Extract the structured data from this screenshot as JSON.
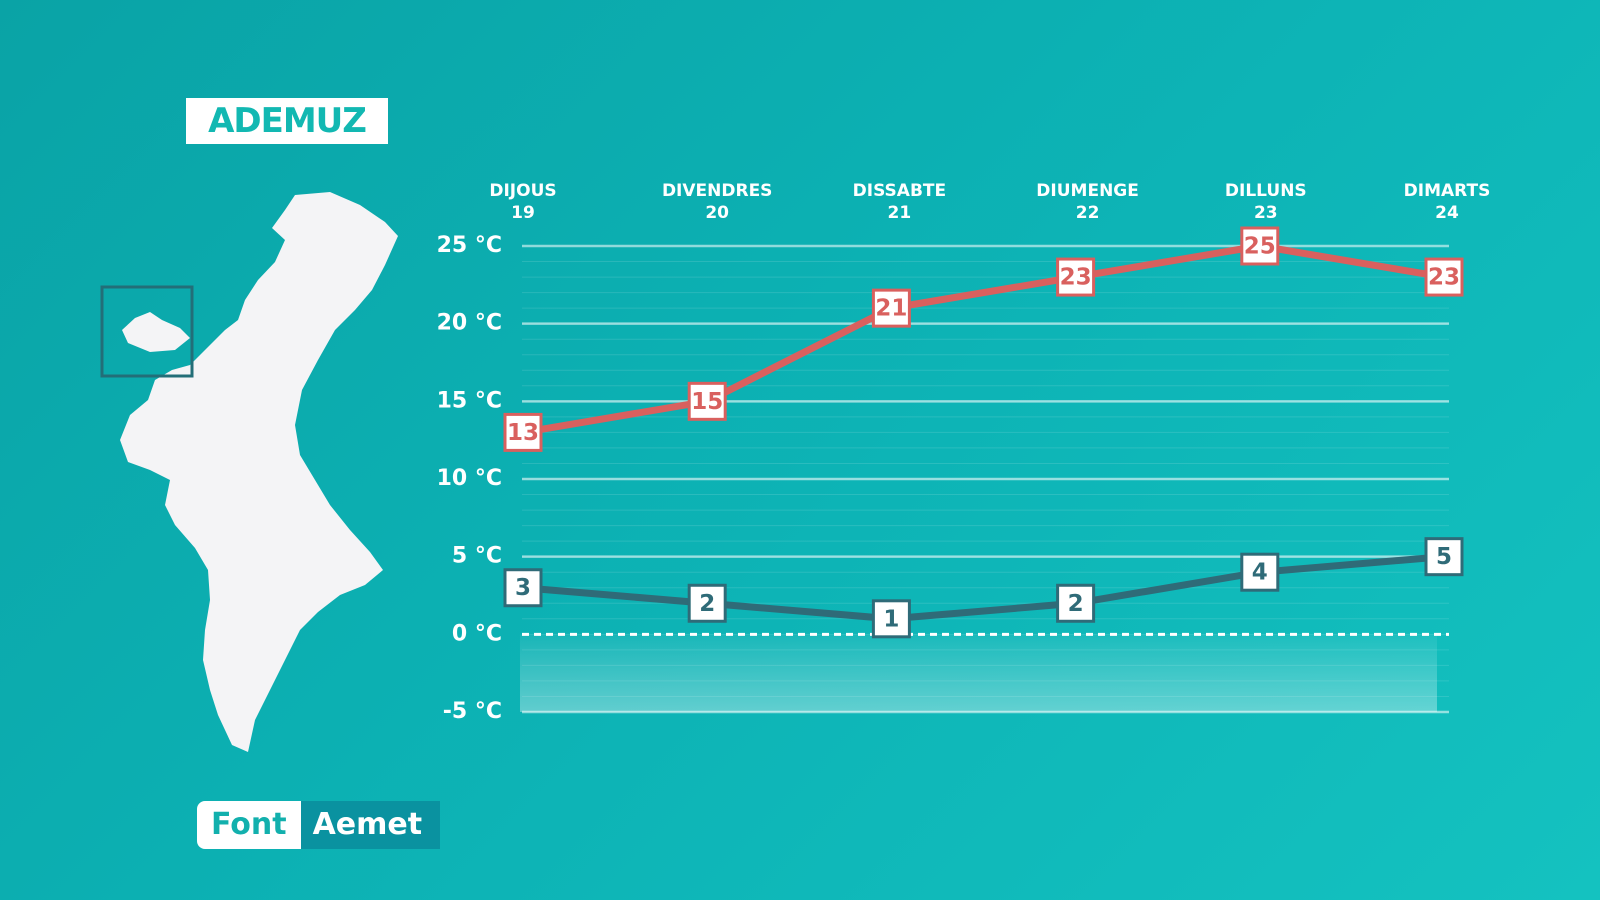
{
  "chart_data": {
    "type": "line",
    "title": "ADEMUZ",
    "categories": [
      "DIJOUS\n19",
      "DIVENDRES\n20",
      "DISSABTE\n21",
      "DIUMENGE\n22",
      "DILLUNS\n23",
      "DIMARTS\n24"
    ],
    "series": [
      {
        "color": "#d9605e",
        "values": [
          13,
          15,
          21,
          23,
          25,
          23
        ]
      },
      {
        "color": "#2f6b78",
        "values": [
          3,
          2,
          1,
          2,
          4,
          5
        ]
      }
    ],
    "ylim": [
      -5,
      25
    ],
    "yticks": [
      {
        "value": -5,
        "label": "-5 °C"
      },
      {
        "value": 0,
        "label": "0 °C"
      },
      {
        "value": 5,
        "label": "5 °C"
      },
      {
        "value": 10,
        "label": "10 °C"
      },
      {
        "value": 15,
        "label": "15 °C"
      },
      {
        "value": 20,
        "label": "20 °C"
      },
      {
        "value": 25,
        "label": "25 °C"
      }
    ],
    "grid": true,
    "source_label": "Font",
    "source": "Aemet"
  }
}
